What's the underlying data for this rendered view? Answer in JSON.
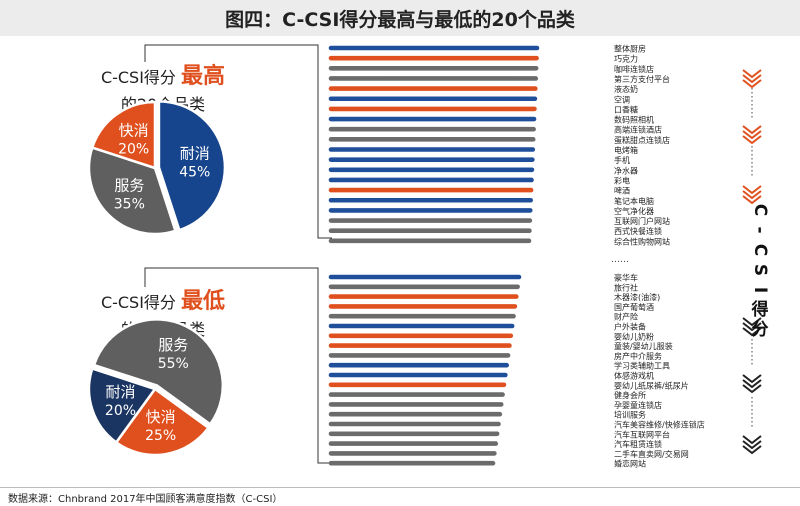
{
  "title": "图四：C-CSI得分最高与最低的20个品类",
  "footer": "数据来源：Chnbrand 2017年中国顾客满意度指数（C-CSI）",
  "side_label": "C-CSI得分",
  "ellipsis": "……",
  "colors": {
    "durable": "#1f4e9b",
    "fmcg": "#e0501e",
    "service": "#6b6b6b",
    "accent": "#e0501e",
    "pie_service": "#5f5f5f",
    "pie_durable": "#17458d",
    "pie_fmcg_low": "#1b3563"
  },
  "chart_data": [
    {
      "type": "pie",
      "caption": {
        "prefix": "C-CSI得分",
        "accent": "最高",
        "suffix": "的20个品类"
      },
      "slices": [
        {
          "label": "耐消",
          "value": 45,
          "pct": "45%",
          "color": "#17458d"
        },
        {
          "label": "服务",
          "value": 35,
          "pct": "35%",
          "color": "#5f5f5f"
        },
        {
          "label": "快消",
          "value": 20,
          "pct": "20%",
          "color": "#e0501e"
        }
      ]
    },
    {
      "type": "pie",
      "caption": {
        "prefix": "C-CSI得分",
        "accent": "最低",
        "suffix": "的20个品类"
      },
      "slices": [
        {
          "label": "服务",
          "value": 55,
          "pct": "55%",
          "color": "#5f5f5f"
        },
        {
          "label": "快消",
          "value": 25,
          "pct": "25%",
          "color": "#e0501e"
        },
        {
          "label": "耐消",
          "value": 20,
          "pct": "20%",
          "color": "#1b3563"
        }
      ]
    },
    {
      "type": "bar",
      "group": "top20",
      "categories": [
        "整体厨房",
        "巧克力",
        "咖啡连锁店",
        "第三方支付平台",
        "液态奶",
        "空调",
        "口香糖",
        "数码照相机",
        "高端连锁酒店",
        "蛋糕甜点连锁店",
        "电烤箱",
        "手机",
        "净水器",
        "彩电",
        "啤酒",
        "笔记本电脑",
        "空气净化器",
        "互联网门户网站",
        "西式快餐连锁",
        "综合性购物网站"
      ],
      "kinds": [
        "durable",
        "fmcg",
        "service",
        "service",
        "fmcg",
        "durable",
        "fmcg",
        "durable",
        "service",
        "service",
        "durable",
        "durable",
        "durable",
        "durable",
        "fmcg",
        "durable",
        "durable",
        "service",
        "service",
        "service"
      ],
      "values": [
        20,
        19,
        18,
        17,
        16,
        15,
        14,
        13,
        12,
        11,
        10,
        9,
        8,
        7,
        6,
        5,
        4,
        3,
        2,
        1
      ]
    },
    {
      "type": "bar",
      "group": "bottom20",
      "categories": [
        "豪华车",
        "旅行社",
        "木器漆(油漆)",
        "国产葡萄酒",
        "财产险",
        "户外装备",
        "婴幼儿奶粉",
        "童装/婴幼儿服装",
        "房产中介服务",
        "学习类辅助工具",
        "体感游戏机",
        "婴幼儿纸尿裤/纸尿片",
        "健身会所",
        "孕婴童连锁店",
        "培训服务",
        "汽车美容维修/快修连锁店",
        "汽车互联网平台",
        "汽车租赁连锁",
        "二手车直卖网/交易网",
        "婚恋网站"
      ],
      "kinds": [
        "durable",
        "service",
        "fmcg",
        "fmcg",
        "service",
        "durable",
        "fmcg",
        "fmcg",
        "service",
        "durable",
        "durable",
        "fmcg",
        "service",
        "service",
        "service",
        "service",
        "service",
        "service",
        "service",
        "service"
      ],
      "values": [
        20,
        19,
        18,
        17,
        16,
        15,
        14,
        13,
        12,
        11,
        10,
        9,
        8,
        7,
        6,
        5,
        4,
        3,
        2,
        1
      ]
    }
  ]
}
